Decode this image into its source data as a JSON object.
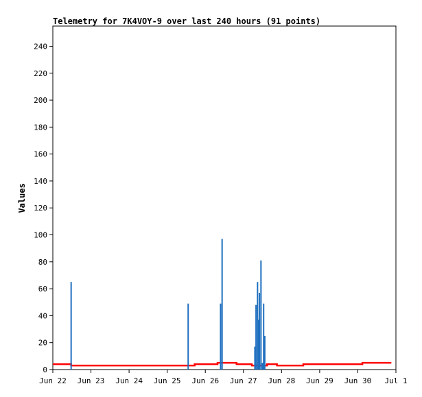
{
  "chart_data": {
    "type": "line",
    "title": "Telemetry for 7K4VOY-9 over last 240 hours (91 points)",
    "ylabel": "Values",
    "xlabel": "",
    "x_ticks": [
      "Jun 22",
      "Jun 23",
      "Jun 24",
      "Jun 25",
      "Jun 26",
      "Jun 27",
      "Jun 28",
      "Jun 29",
      "Jun 30",
      "Jul 1"
    ],
    "y_ticks": [
      0,
      20,
      40,
      60,
      80,
      100,
      120,
      140,
      160,
      180,
      200,
      220,
      240
    ],
    "xlim": [
      0,
      9
    ],
    "ylim": [
      0,
      255
    ],
    "grid": false,
    "colors": {
      "series_red": "#ff0000",
      "series_blue": "#1f6fbf",
      "axis": "#000000"
    },
    "series": [
      {
        "color": "#ff0000",
        "style": "step",
        "points": [
          [
            0.0,
            4
          ],
          [
            0.45,
            4
          ],
          [
            0.48,
            3
          ],
          [
            3.7,
            3
          ],
          [
            3.72,
            4
          ],
          [
            4.3,
            4
          ],
          [
            4.32,
            5
          ],
          [
            4.8,
            5
          ],
          [
            4.82,
            4
          ],
          [
            5.2,
            4
          ],
          [
            5.22,
            3
          ],
          [
            5.6,
            3
          ],
          [
            5.62,
            4
          ],
          [
            5.85,
            4
          ],
          [
            5.88,
            3
          ],
          [
            6.55,
            3
          ],
          [
            6.57,
            4
          ],
          [
            8.1,
            4
          ],
          [
            8.12,
            5
          ],
          [
            8.88,
            5
          ]
        ]
      },
      {
        "color": "#1f6fbf",
        "style": "spikes",
        "points": [
          [
            0.48,
            65
          ],
          [
            3.55,
            49
          ],
          [
            4.4,
            49
          ],
          [
            4.44,
            97
          ],
          [
            5.3,
            17
          ],
          [
            5.33,
            48
          ],
          [
            5.37,
            65
          ],
          [
            5.4,
            37
          ],
          [
            5.42,
            57
          ],
          [
            5.46,
            81
          ],
          [
            5.5,
            5
          ],
          [
            5.53,
            49
          ],
          [
            5.56,
            25
          ]
        ]
      }
    ]
  }
}
